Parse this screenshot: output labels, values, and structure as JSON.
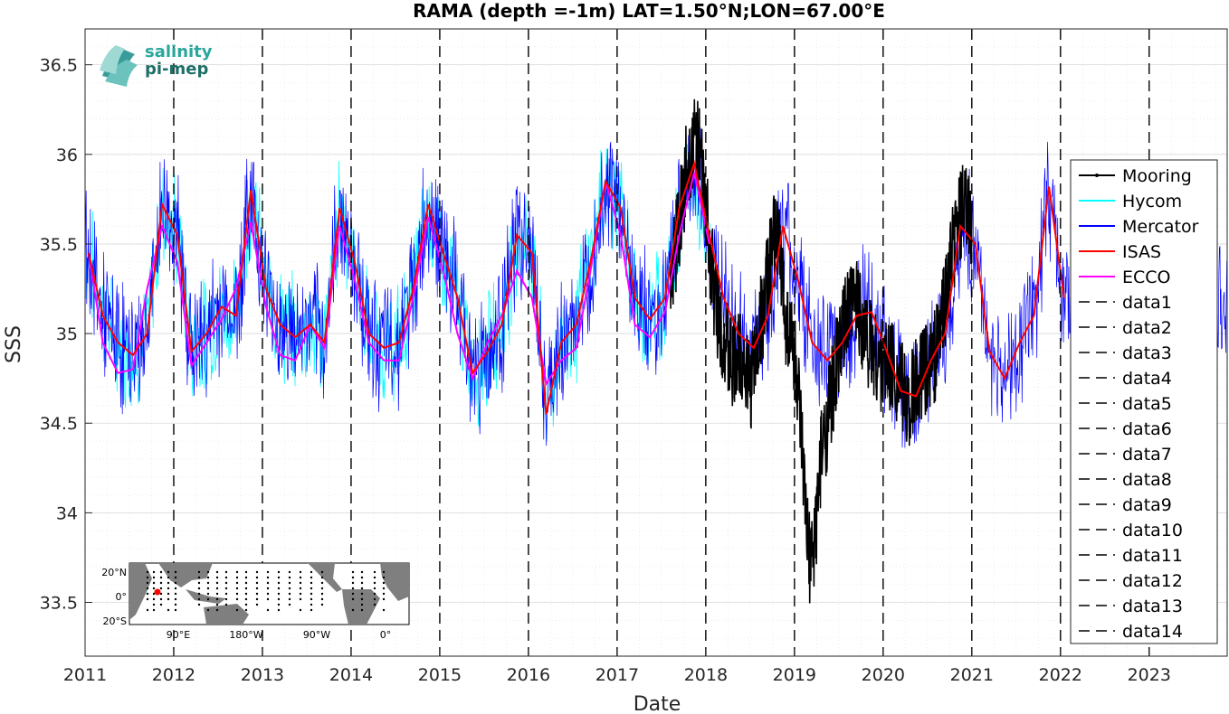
{
  "chart_data": {
    "type": "line",
    "title": "RAMA (depth =-1m) LAT=1.50°N;LON=67.00°E",
    "xlabel": "Date",
    "ylabel": "SSS",
    "xlim": [
      2011.0,
      2023.88
    ],
    "ylim": [
      33.2,
      36.7
    ],
    "x_ticks": [
      "2011",
      "2012",
      "2013",
      "2014",
      "2015",
      "2016",
      "2017",
      "2018",
      "2019",
      "2020",
      "2021",
      "2022",
      "2023"
    ],
    "y_ticks": [
      "33.5",
      "34",
      "34.5",
      "35",
      "35.5",
      "36",
      "36.5"
    ],
    "grid": true,
    "legend_position": "right",
    "legend": [
      "Mooring",
      "Hycom",
      "Mercator",
      "ISAS",
      "ECCO",
      "data1",
      "data2",
      "data3",
      "data4",
      "data5",
      "data6",
      "data7",
      "data8",
      "data9",
      "data10",
      "data11",
      "data12",
      "data13",
      "data14"
    ],
    "colors": {
      "Mooring": "#000000",
      "Hycom": "#00ffff",
      "Mercator": "#0000ff",
      "ISAS": "#ff0000",
      "ECCO": "#ff00ff",
      "vlines": "#000000"
    },
    "vertical_lines_x": [
      2012.0,
      2013.0,
      2014.0,
      2015.0,
      2016.0,
      2017.0,
      2018.0,
      2019.0,
      2020.0,
      2021.0,
      2022.0,
      2023.0,
      2011.0,
      2024.0
    ],
    "series": [
      {
        "name": "ISAS",
        "x": [
          2011.04,
          2011.2,
          2011.37,
          2011.54,
          2011.7,
          2011.87,
          2012.04,
          2012.2,
          2012.37,
          2012.54,
          2012.7,
          2012.87,
          2013.04,
          2013.2,
          2013.37,
          2013.54,
          2013.7,
          2013.87,
          2014.04,
          2014.2,
          2014.37,
          2014.54,
          2014.7,
          2014.87,
          2015.04,
          2015.2,
          2015.37,
          2015.54,
          2015.7,
          2015.87,
          2016.04,
          2016.2,
          2016.37,
          2016.54,
          2016.7,
          2016.87,
          2017.04,
          2017.2,
          2017.37,
          2017.54,
          2017.7,
          2017.87,
          2018.04,
          2018.2,
          2018.37,
          2018.54,
          2018.7,
          2018.87,
          2019.04,
          2019.2,
          2019.37,
          2019.54,
          2019.7,
          2019.87,
          2020.04,
          2020.2,
          2020.37,
          2020.54,
          2020.7,
          2020.87,
          2021.04,
          2021.2,
          2021.37,
          2021.54,
          2021.7,
          2021.87,
          2022.04
        ],
        "y": [
          35.45,
          35.1,
          34.95,
          34.88,
          35.0,
          35.72,
          35.55,
          34.9,
          35.0,
          35.15,
          35.1,
          35.8,
          35.25,
          35.05,
          34.98,
          35.05,
          34.95,
          35.7,
          35.4,
          35.0,
          34.92,
          34.95,
          35.25,
          35.72,
          35.45,
          35.2,
          34.78,
          34.9,
          35.05,
          35.55,
          35.45,
          34.55,
          34.95,
          35.05,
          35.4,
          35.85,
          35.7,
          35.2,
          35.08,
          35.2,
          35.7,
          35.95,
          35.55,
          35.2,
          35.0,
          34.92,
          35.1,
          35.6,
          35.3,
          34.95,
          34.85,
          34.95,
          35.1,
          35.12,
          34.9,
          34.68,
          34.65,
          34.85,
          35.0,
          35.6,
          35.5,
          34.9,
          34.75,
          34.95,
          35.1,
          35.82,
          35.2
        ]
      },
      {
        "name": "ECCO",
        "x": [
          2011.04,
          2011.2,
          2011.37,
          2011.54,
          2011.7,
          2011.87,
          2012.04,
          2012.2,
          2012.37,
          2012.54,
          2012.7,
          2012.87,
          2013.04,
          2013.2,
          2013.37,
          2013.54,
          2013.7,
          2013.87,
          2014.04,
          2014.2,
          2014.37,
          2014.54,
          2014.7,
          2014.87,
          2015.04,
          2015.2,
          2015.37,
          2015.54,
          2015.7,
          2015.87,
          2016.04,
          2016.2,
          2016.37,
          2016.54,
          2016.7,
          2016.87,
          2017.04,
          2017.2,
          2017.37,
          2017.54,
          2017.7,
          2017.87,
          2018.04
        ],
        "y": [
          35.45,
          34.95,
          34.78,
          34.8,
          35.25,
          35.6,
          35.4,
          34.82,
          34.95,
          35.08,
          35.25,
          35.62,
          35.15,
          34.88,
          34.85,
          35.05,
          34.92,
          35.6,
          35.3,
          34.95,
          34.85,
          34.85,
          35.2,
          35.65,
          35.35,
          35.0,
          34.75,
          34.95,
          35.1,
          35.35,
          35.2,
          34.72,
          34.85,
          34.92,
          35.35,
          35.85,
          35.55,
          35.05,
          34.98,
          35.12,
          35.55,
          35.9,
          35.5
        ]
      },
      {
        "name": "Mooring",
        "x": [
          2017.6,
          2017.7,
          2017.8,
          2017.9,
          2018.0,
          2018.1,
          2018.2,
          2018.3,
          2018.4,
          2018.5,
          2018.6,
          2018.7,
          2018.8,
          2018.9,
          2019.0,
          2019.05,
          2019.1,
          2019.15,
          2019.2,
          2019.25,
          2019.3,
          2019.4,
          2019.5,
          2019.6,
          2019.7,
          2019.8,
          2019.9,
          2020.0,
          2020.1,
          2020.2,
          2020.3,
          2020.4,
          2020.5,
          2020.6,
          2020.7,
          2020.8,
          2020.9,
          2021.0
        ],
        "y": [
          35.3,
          35.6,
          36.0,
          36.1,
          35.7,
          35.2,
          35.0,
          34.8,
          34.9,
          34.7,
          35.0,
          35.3,
          35.6,
          35.1,
          34.9,
          34.6,
          34.2,
          33.8,
          33.7,
          34.0,
          34.3,
          34.6,
          34.9,
          35.1,
          35.2,
          35.0,
          34.9,
          34.8,
          34.85,
          34.7,
          34.6,
          34.75,
          34.8,
          34.9,
          35.2,
          35.5,
          35.7,
          35.6
        ]
      }
    ]
  },
  "logo": {
    "line1": "salinity",
    "line2": "pi-mep"
  },
  "map": {
    "lat_labels": [
      "20°N",
      "0°",
      "20°S"
    ],
    "lon_labels": [
      "90°E",
      "180°W",
      "90°W",
      "0°"
    ]
  }
}
